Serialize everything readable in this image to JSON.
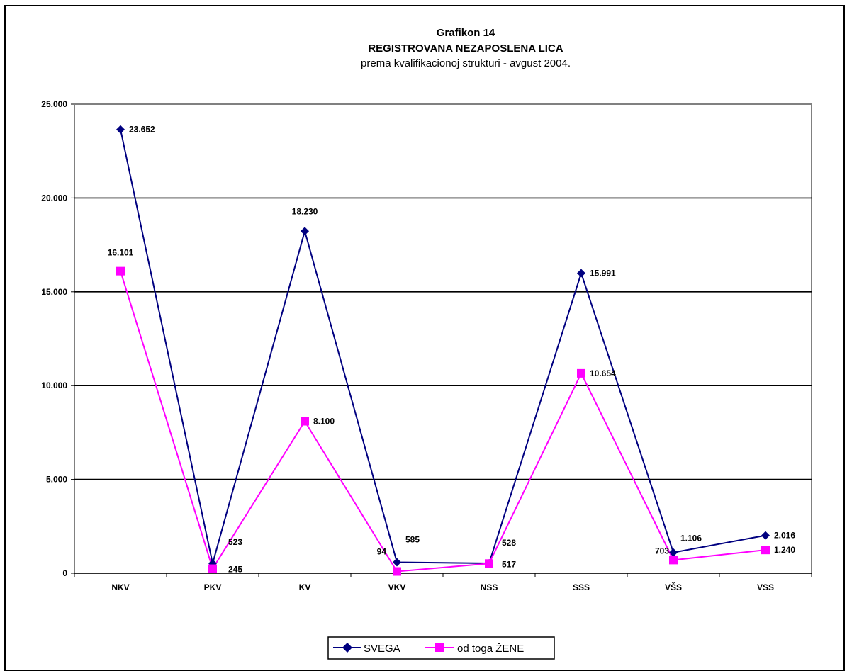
{
  "chart_data": {
    "type": "line",
    "title": "Grafikon 14",
    "title_line2": "REGISTROVANA NEZAPOSLENA LICA",
    "subtitle": "prema kvalifikacionoj strukturi - avgust 2004.",
    "xlabel": "",
    "ylabel": "",
    "categories": [
      "NKV",
      "PKV",
      "KV",
      "VKV",
      "NSS",
      "SSS",
      "VŠS",
      "VSS"
    ],
    "ylim": [
      0,
      25000
    ],
    "yticks": [
      0,
      5000,
      10000,
      15000,
      20000,
      25000
    ],
    "ytick_labels": [
      "0",
      "5.000",
      "10.000",
      "15.000",
      "20.000",
      "25.000"
    ],
    "grid": true,
    "legend_position": "bottom",
    "series": [
      {
        "name": "SVEGA",
        "color": "#000080",
        "marker": "diamond",
        "values": [
          23652,
          523,
          18230,
          585,
          528,
          15991,
          1106,
          2016
        ],
        "labels": [
          "23.652",
          "523",
          "18.230",
          "585",
          "528",
          "15.991",
          "1.106",
          "2.016"
        ]
      },
      {
        "name": "od toga ŽENE",
        "color": "#FF00FF",
        "marker": "square",
        "values": [
          16101,
          245,
          8100,
          94,
          517,
          10654,
          703,
          1240
        ],
        "labels": [
          "16.101",
          "245",
          "8.100",
          "94",
          "517",
          "10.654",
          "703",
          "1.240"
        ]
      }
    ]
  }
}
